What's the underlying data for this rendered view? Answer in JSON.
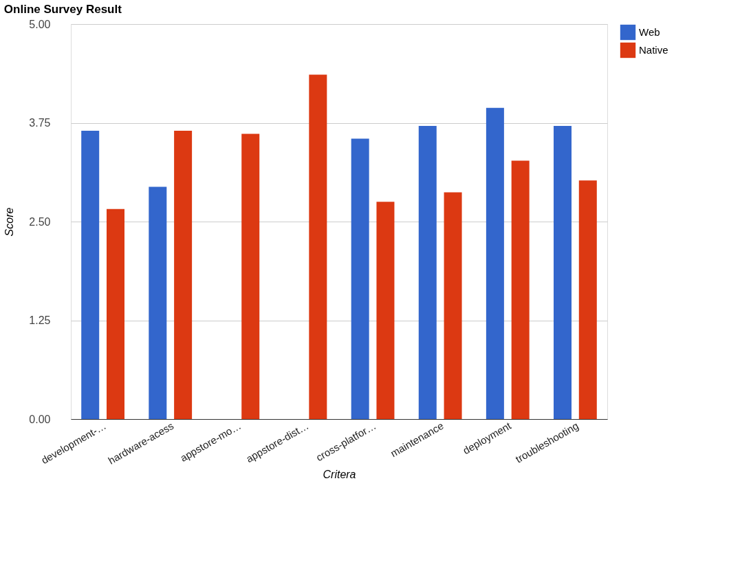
{
  "chart_data": {
    "type": "bar",
    "title": "Online Survey Result",
    "xlabel": "Critera",
    "ylabel": "Score",
    "categories": [
      "development-…",
      "hardware-acess",
      "appstore-mo…",
      "appstore-dist…",
      "cross-platfor…",
      "maintenance",
      "deployment",
      "troubleshooting"
    ],
    "series": [
      {
        "name": "Web",
        "color": "#3366cc",
        "values": [
          3.65,
          2.94,
          null,
          null,
          3.55,
          3.71,
          3.94,
          3.71
        ]
      },
      {
        "name": "Native",
        "color": "#dc3912",
        "values": [
          2.66,
          3.65,
          3.61,
          4.36,
          2.75,
          2.87,
          3.27,
          3.02
        ]
      }
    ],
    "ylim": [
      0,
      5
    ],
    "yticks": [
      {
        "value": 0,
        "label": "0.00"
      },
      {
        "value": 1.25,
        "label": "1.25"
      },
      {
        "value": 2.5,
        "label": "2.50"
      },
      {
        "value": 3.75,
        "label": "3.75"
      },
      {
        "value": 5,
        "label": "5.00"
      }
    ],
    "grid": "y",
    "legend": "top right"
  }
}
